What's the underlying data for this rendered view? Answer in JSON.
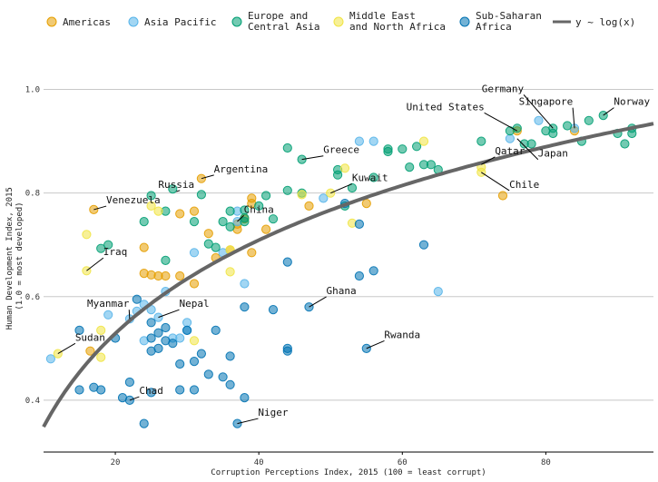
{
  "chart_data": {
    "type": "scatter",
    "title": "",
    "xlabel": "Corruption Perceptions Index, 2015 (100 = least corrupt)",
    "ylabel": "Human Development Index, 2015 (1.0 = most developed)",
    "ylabel_lines": [
      "Human Development Index, 2015",
      "(1.0 = most developed)"
    ],
    "xlim": [
      10,
      95
    ],
    "ylim": [
      0.3,
      1.05
    ],
    "x_ticks": [
      20,
      40,
      60,
      80
    ],
    "y_ticks": [
      0.4,
      0.6,
      0.8,
      1.0
    ],
    "x_tick_labels": [
      "20",
      "40",
      "60",
      "80"
    ],
    "y_tick_labels": [
      "0.4",
      "0.6",
      "0.8",
      "1.0"
    ],
    "grid": "horizontal",
    "legend": {
      "placement": "top",
      "entries": [
        {
          "key": "americas",
          "lines": [
            "Americas"
          ]
        },
        {
          "key": "asia",
          "lines": [
            "Asia Pacific"
          ]
        },
        {
          "key": "europe",
          "lines": [
            "Europe and",
            "Central Asia"
          ]
        },
        {
          "key": "mena",
          "lines": [
            "Middle East",
            "and North Africa"
          ]
        },
        {
          "key": "ssa",
          "lines": [
            "Sub-Saharan",
            "Africa"
          ]
        },
        {
          "key": "trend",
          "lines": [
            "y ~ log(x)"
          ]
        }
      ]
    },
    "colors": {
      "americas": "#E69F00",
      "asia": "#56B4E9",
      "europe": "#009E73",
      "mena": "#F0E442",
      "ssa": "#0072B2",
      "trend": "#666666"
    },
    "trend_line": {
      "form": "y = a + b*ln(x)",
      "a": -0.25,
      "b": 0.26
    },
    "series": [
      {
        "name": "Americas",
        "region": "americas",
        "points": [
          [
            16.5,
            0.495
          ],
          [
            17,
            0.768
          ],
          [
            24,
            0.695
          ],
          [
            24,
            0.645
          ],
          [
            25,
            0.642
          ],
          [
            26,
            0.64
          ],
          [
            27,
            0.64
          ],
          [
            29,
            0.64
          ],
          [
            29,
            0.76
          ],
          [
            31,
            0.765
          ],
          [
            31,
            0.625
          ],
          [
            32,
            0.828
          ],
          [
            33,
            0.722
          ],
          [
            34,
            0.675
          ],
          [
            36,
            0.69
          ],
          [
            37,
            0.74
          ],
          [
            37,
            0.73
          ],
          [
            38,
            0.75
          ],
          [
            39,
            0.685
          ],
          [
            39,
            0.79
          ],
          [
            39,
            0.78
          ],
          [
            41,
            0.73
          ],
          [
            47,
            0.775
          ],
          [
            55,
            0.78
          ],
          [
            74,
            0.795
          ],
          [
            76,
            0.92
          ],
          [
            84,
            0.92
          ]
        ]
      },
      {
        "name": "Asia Pacific",
        "region": "asia",
        "points": [
          [
            11,
            0.48
          ],
          [
            19,
            0.565
          ],
          [
            22,
            0.557
          ],
          [
            23,
            0.572
          ],
          [
            24,
            0.585
          ],
          [
            24,
            0.515
          ],
          [
            25,
            0.575
          ],
          [
            26,
            0.56
          ],
          [
            27,
            0.61
          ],
          [
            28,
            0.52
          ],
          [
            29,
            0.52
          ],
          [
            30,
            0.55
          ],
          [
            30,
            0.535
          ],
          [
            31,
            0.685
          ],
          [
            35,
            0.685
          ],
          [
            37,
            0.745
          ],
          [
            37,
            0.765
          ],
          [
            38,
            0.625
          ],
          [
            49,
            0.79
          ],
          [
            54,
            0.9
          ],
          [
            56,
            0.9
          ],
          [
            65,
            0.61
          ],
          [
            75,
            0.905
          ],
          [
            79,
            0.94
          ],
          [
            84,
            0.925
          ]
        ]
      },
      {
        "name": "Europe and Central Asia",
        "region": "europe",
        "points": [
          [
            18,
            0.693
          ],
          [
            19,
            0.7
          ],
          [
            24,
            0.745
          ],
          [
            25,
            0.795
          ],
          [
            27,
            0.67
          ],
          [
            27,
            0.765
          ],
          [
            28,
            0.808
          ],
          [
            31,
            0.745
          ],
          [
            32,
            0.797
          ],
          [
            33,
            0.702
          ],
          [
            34,
            0.695
          ],
          [
            35,
            0.745
          ],
          [
            36,
            0.765
          ],
          [
            36,
            0.735
          ],
          [
            38,
            0.745
          ],
          [
            38,
            0.752
          ],
          [
            38,
            0.767
          ],
          [
            40,
            0.775
          ],
          [
            41,
            0.795
          ],
          [
            42,
            0.75
          ],
          [
            44,
            0.805
          ],
          [
            44,
            0.887
          ],
          [
            46,
            0.865
          ],
          [
            46,
            0.8
          ],
          [
            51,
            0.845
          ],
          [
            51,
            0.835
          ],
          [
            52,
            0.775
          ],
          [
            53,
            0.81
          ],
          [
            56,
            0.83
          ],
          [
            58,
            0.885
          ],
          [
            58,
            0.88
          ],
          [
            60,
            0.885
          ],
          [
            61,
            0.85
          ],
          [
            62,
            0.89
          ],
          [
            63,
            0.855
          ],
          [
            64,
            0.855
          ],
          [
            65,
            0.845
          ],
          [
            71,
            0.9
          ],
          [
            75,
            0.92
          ],
          [
            76,
            0.925
          ],
          [
            77,
            0.895
          ],
          [
            78,
            0.895
          ],
          [
            80,
            0.92
          ],
          [
            81,
            0.915
          ],
          [
            81,
            0.925
          ],
          [
            83,
            0.93
          ],
          [
            85,
            0.9
          ],
          [
            86,
            0.94
          ],
          [
            88,
            0.95
          ],
          [
            90,
            0.915
          ],
          [
            91,
            0.895
          ],
          [
            92,
            0.925
          ],
          [
            92,
            0.915
          ]
        ]
      },
      {
        "name": "Middle East and North Africa",
        "region": "mena",
        "points": [
          [
            12,
            0.49
          ],
          [
            16,
            0.72
          ],
          [
            16,
            0.65
          ],
          [
            18,
            0.535
          ],
          [
            18,
            0.483
          ],
          [
            25,
            0.775
          ],
          [
            26,
            0.765
          ],
          [
            31,
            0.515
          ],
          [
            36,
            0.648
          ],
          [
            36,
            0.69
          ],
          [
            46,
            0.797
          ],
          [
            50,
            0.8
          ],
          [
            52,
            0.848
          ],
          [
            53,
            0.742
          ],
          [
            63,
            0.9
          ],
          [
            71,
            0.84
          ],
          [
            71,
            0.85
          ]
        ]
      },
      {
        "name": "Sub-Saharan Africa",
        "region": "ssa",
        "points": [
          [
            15,
            0.535
          ],
          [
            15,
            0.42
          ],
          [
            17,
            0.425
          ],
          [
            18,
            0.42
          ],
          [
            20,
            0.52
          ],
          [
            21,
            0.405
          ],
          [
            22,
            0.435
          ],
          [
            22,
            0.4
          ],
          [
            23,
            0.595
          ],
          [
            24,
            0.355
          ],
          [
            25,
            0.495
          ],
          [
            25,
            0.415
          ],
          [
            25,
            0.52
          ],
          [
            25,
            0.55
          ],
          [
            26,
            0.53
          ],
          [
            26,
            0.5
          ],
          [
            27,
            0.54
          ],
          [
            27,
            0.515
          ],
          [
            28,
            0.51
          ],
          [
            29,
            0.47
          ],
          [
            29,
            0.42
          ],
          [
            30,
            0.535
          ],
          [
            31,
            0.475
          ],
          [
            31,
            0.42
          ],
          [
            32,
            0.49
          ],
          [
            33,
            0.45
          ],
          [
            34,
            0.535
          ],
          [
            35,
            0.445
          ],
          [
            36,
            0.485
          ],
          [
            36,
            0.43
          ],
          [
            37,
            0.355
          ],
          [
            38,
            0.405
          ],
          [
            38,
            0.58
          ],
          [
            42,
            0.575
          ],
          [
            44,
            0.667
          ],
          [
            44,
            0.5
          ],
          [
            44,
            0.495
          ],
          [
            47,
            0.58
          ],
          [
            52,
            0.78
          ],
          [
            54,
            0.74
          ],
          [
            54,
            0.64
          ],
          [
            55,
            0.5
          ],
          [
            56,
            0.65
          ],
          [
            63,
            0.7
          ]
        ]
      }
    ],
    "annotations": [
      {
        "label": "Venezuela",
        "x": 17,
        "y": 0.768,
        "tx": 22.5,
        "ty": 0.78
      },
      {
        "label": "Russia",
        "x": 29,
        "y": 0.805,
        "tx": 28.5,
        "ty": 0.81
      },
      {
        "label": "Argentina",
        "x": 32,
        "y": 0.828,
        "tx": 37.5,
        "ty": 0.84
      },
      {
        "label": "Greece",
        "x": 46,
        "y": 0.865,
        "tx": 51.5,
        "ty": 0.877
      },
      {
        "label": "Kuwait",
        "x": 50,
        "y": 0.8,
        "tx": 55.5,
        "ty": 0.823
      },
      {
        "label": "China",
        "x": 37,
        "y": 0.745,
        "tx": 40,
        "ty": 0.762
      },
      {
        "label": "Iraq",
        "x": 16,
        "y": 0.65,
        "tx": 20,
        "ty": 0.68
      },
      {
        "label": "Myanmar",
        "x": 22,
        "y": 0.557,
        "tx": 19,
        "ty": 0.58
      },
      {
        "label": "Nepal",
        "x": 26,
        "y": 0.56,
        "tx": 31,
        "ty": 0.58
      },
      {
        "label": "Sudan",
        "x": 12,
        "y": 0.49,
        "tx": 16.5,
        "ty": 0.515
      },
      {
        "label": "Chad",
        "x": 22,
        "y": 0.4,
        "tx": 25,
        "ty": 0.412
      },
      {
        "label": "Niger",
        "x": 37,
        "y": 0.355,
        "tx": 42,
        "ty": 0.37
      },
      {
        "label": "Ghana",
        "x": 47,
        "y": 0.58,
        "tx": 51.5,
        "ty": 0.605
      },
      {
        "label": "Rwanda",
        "x": 55,
        "y": 0.5,
        "tx": 60,
        "ty": 0.52
      },
      {
        "label": "United States",
        "x": 76,
        "y": 0.92,
        "tx": 66,
        "ty": 0.96
      },
      {
        "label": "Germany",
        "x": 81,
        "y": 0.925,
        "tx": 74,
        "ty": 0.995
      },
      {
        "label": "Singapore",
        "x": 84,
        "y": 0.925,
        "tx": 80,
        "ty": 0.97
      },
      {
        "label": "Norway",
        "x": 88,
        "y": 0.95,
        "tx": 92,
        "ty": 0.97
      },
      {
        "label": "Qatar",
        "x": 71,
        "y": 0.855,
        "tx": 75,
        "ty": 0.875
      },
      {
        "label": "Japan",
        "x": 76,
        "y": 0.905,
        "tx": 81,
        "ty": 0.87
      },
      {
        "label": "Chile",
        "x": 71,
        "y": 0.84,
        "tx": 77,
        "ty": 0.81
      }
    ]
  }
}
